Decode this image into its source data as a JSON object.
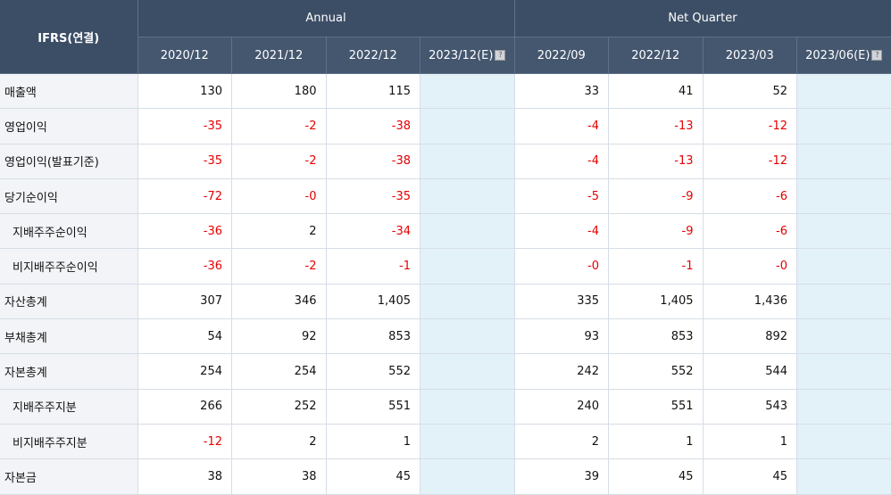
{
  "header": {
    "corner_label": "IFRS(연결)",
    "groups": [
      {
        "label": "Annual"
      },
      {
        "label": "Net Quarter"
      }
    ],
    "periods": [
      "2020/12",
      "2021/12",
      "2022/12",
      "2023/12(E)",
      "2022/09",
      "2022/12",
      "2023/03",
      "2023/06(E)"
    ],
    "estimate_icon": "info-icon"
  },
  "colors": {
    "header_bg": "#3c4e66",
    "negative": "#e60000",
    "estimate_bg": "#e3f1f9",
    "label_bg": "#f2f4f7"
  },
  "rows": [
    {
      "label": "매출액",
      "indent": false,
      "values": [
        "130",
        "180",
        "115",
        "",
        "33",
        "41",
        "52",
        ""
      ]
    },
    {
      "label": "영업이익",
      "indent": false,
      "values": [
        "-35",
        "-2",
        "-38",
        "",
        "-4",
        "-13",
        "-12",
        ""
      ]
    },
    {
      "label": "영업이익(발표기준)",
      "indent": false,
      "values": [
        "-35",
        "-2",
        "-38",
        "",
        "-4",
        "-13",
        "-12",
        ""
      ]
    },
    {
      "label": "당기순이익",
      "indent": false,
      "values": [
        "-72",
        "-0",
        "-35",
        "",
        "-5",
        "-9",
        "-6",
        ""
      ]
    },
    {
      "label": "지배주주순이익",
      "indent": true,
      "values": [
        "-36",
        "2",
        "-34",
        "",
        "-4",
        "-9",
        "-6",
        ""
      ]
    },
    {
      "label": "비지배주주순이익",
      "indent": true,
      "values": [
        "-36",
        "-2",
        "-1",
        "",
        "-0",
        "-1",
        "-0",
        ""
      ]
    },
    {
      "label": "자산총계",
      "indent": false,
      "values": [
        "307",
        "346",
        "1,405",
        "",
        "335",
        "1,405",
        "1,436",
        ""
      ]
    },
    {
      "label": "부채총계",
      "indent": false,
      "values": [
        "54",
        "92",
        "853",
        "",
        "93",
        "853",
        "892",
        ""
      ]
    },
    {
      "label": "자본총계",
      "indent": false,
      "values": [
        "254",
        "254",
        "552",
        "",
        "242",
        "552",
        "544",
        ""
      ]
    },
    {
      "label": "지배주주지분",
      "indent": true,
      "values": [
        "266",
        "252",
        "551",
        "",
        "240",
        "551",
        "543",
        ""
      ]
    },
    {
      "label": "비지배주주지분",
      "indent": true,
      "values": [
        "-12",
        "2",
        "1",
        "",
        "2",
        "1",
        "1",
        ""
      ]
    },
    {
      "label": "자본금",
      "indent": false,
      "values": [
        "38",
        "38",
        "45",
        "",
        "39",
        "45",
        "45",
        ""
      ]
    }
  ]
}
